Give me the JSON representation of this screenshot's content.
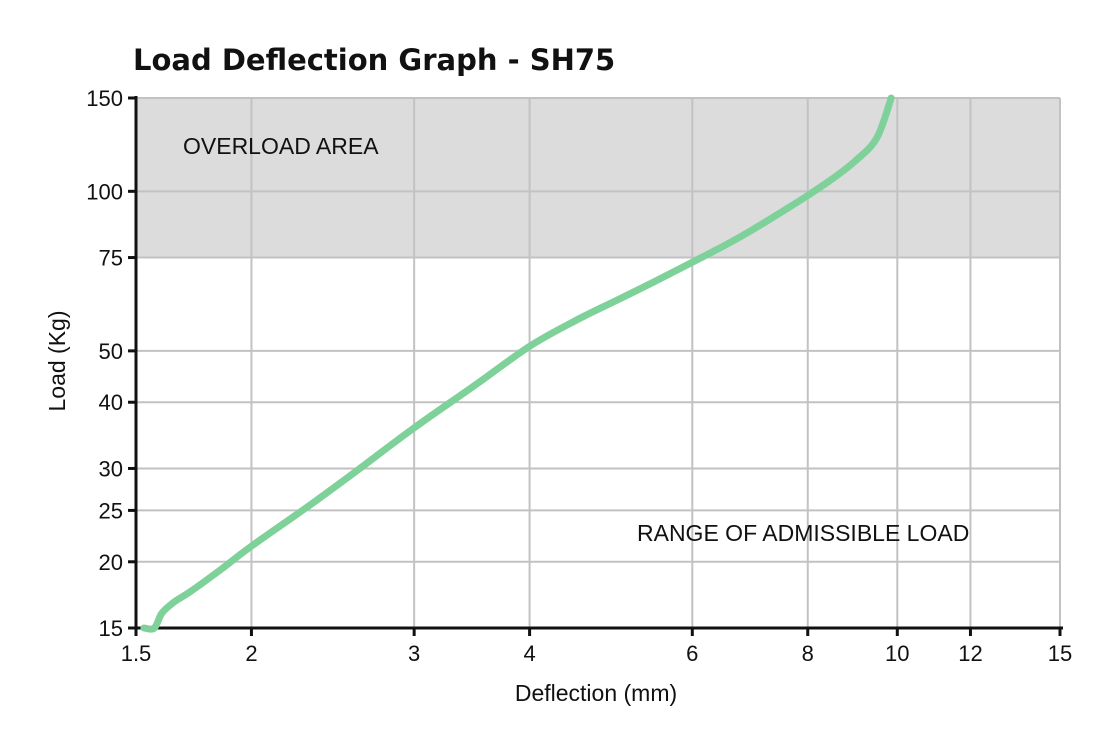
{
  "chart_data": {
    "type": "line",
    "title": "Load Deflection Graph - SH75",
    "xlabel": "Deflection (mm)",
    "ylabel": "Load (Kg)",
    "xscale": "log",
    "yscale": "log",
    "xlim": [
      1.5,
      15
    ],
    "ylim": [
      15,
      150
    ],
    "xticks": [
      1.5,
      2,
      3,
      4,
      6,
      8,
      10,
      12,
      15
    ],
    "xtick_labels": [
      "1.5",
      "2",
      "3",
      "4",
      "6",
      "8",
      "10",
      "12",
      "15"
    ],
    "yticks": [
      15,
      20,
      25,
      30,
      40,
      50,
      75,
      100,
      150
    ],
    "ytick_labels": [
      "15",
      "20",
      "25",
      "30",
      "40",
      "50",
      "75",
      "100",
      "150"
    ],
    "grid": true,
    "regions": [
      {
        "label": "OVERLOAD AREA",
        "y_range": [
          75,
          150
        ],
        "color": "#dcdcdc"
      },
      {
        "label": "RANGE OF ADMISSIBLE LOAD",
        "y_range": [
          15,
          75
        ],
        "color": "#ffffff"
      }
    ],
    "series": [
      {
        "color": "#7fd19a",
        "x": [
          1.53,
          1.57,
          1.6,
          1.65,
          1.72,
          1.85,
          2.0,
          2.3,
          2.6,
          3.0,
          3.5,
          4.0,
          4.5,
          5.0,
          5.5,
          6.0,
          6.5,
          7.0,
          7.5,
          8.0,
          8.5,
          9.0,
          9.5,
          9.85
        ],
        "y": [
          15,
          15,
          16,
          16.8,
          17.6,
          19.3,
          21.4,
          25.4,
          29.7,
          35.8,
          43.2,
          51.0,
          57.2,
          62.6,
          68.0,
          73.5,
          79.0,
          85.0,
          91.5,
          98.2,
          105.5,
          114.0,
          126.0,
          150.0
        ]
      }
    ]
  }
}
